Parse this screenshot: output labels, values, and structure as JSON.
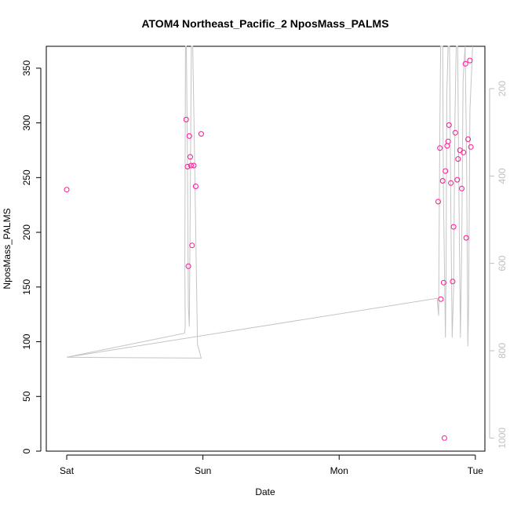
{
  "chart_data": {
    "type": "scatter",
    "title": "ATOM4 Northeast_Pacific_2 NposMass_PALMS",
    "xlabel": "Date",
    "ylabel": "NposMass_PALMS",
    "x_ticks": [
      {
        "label": "Sat",
        "day": 0
      },
      {
        "label": "Sun",
        "day": 1
      },
      {
        "label": "Mon",
        "day": 2
      },
      {
        "label": "Tue",
        "day": 3
      }
    ],
    "xlim_days": [
      -0.15,
      3.07
    ],
    "ylim": [
      0,
      370
    ],
    "y_ticks": [
      0,
      50,
      100,
      150,
      200,
      250,
      300,
      350
    ],
    "right_axis": {
      "ylim": [
        1030,
        103
      ],
      "ticks": [
        200,
        400,
        600,
        800,
        1000
      ],
      "color": "#c0c0c0"
    },
    "series": [
      {
        "style": "points",
        "color": "#ff1493",
        "points": [
          [
            0.0,
            239
          ],
          [
            0.877,
            303
          ],
          [
            0.887,
            260
          ],
          [
            0.893,
            169
          ],
          [
            0.9,
            288
          ],
          [
            0.907,
            269
          ],
          [
            0.913,
            261
          ],
          [
            0.92,
            188
          ],
          [
            0.933,
            261
          ],
          [
            0.947,
            242
          ],
          [
            0.987,
            290
          ],
          [
            2.727,
            228
          ],
          [
            2.74,
            277
          ],
          [
            2.747,
            139
          ],
          [
            2.76,
            247
          ],
          [
            2.767,
            154
          ],
          [
            2.773,
            12
          ],
          [
            2.78,
            256
          ],
          [
            2.793,
            279
          ],
          [
            2.8,
            283
          ],
          [
            2.807,
            298
          ],
          [
            2.82,
            245
          ],
          [
            2.833,
            155
          ],
          [
            2.84,
            205
          ],
          [
            2.853,
            291
          ],
          [
            2.867,
            248
          ],
          [
            2.873,
            267
          ],
          [
            2.887,
            275
          ],
          [
            2.9,
            240
          ],
          [
            2.913,
            273
          ],
          [
            2.927,
            354
          ],
          [
            2.933,
            195
          ],
          [
            2.947,
            285
          ],
          [
            2.96,
            357
          ],
          [
            2.967,
            278
          ]
        ]
      },
      {
        "style": "line",
        "axis": "right",
        "color": "#c4c4c4",
        "points": [
          [
            0.0,
            815
          ],
          [
            0.987,
            817
          ],
          [
            0.96,
            785
          ],
          [
            0.935,
            290
          ],
          [
            0.925,
            103
          ],
          [
            0.915,
            103
          ],
          [
            0.91,
            320
          ],
          [
            0.9,
            745
          ],
          [
            0.893,
            700
          ],
          [
            0.885,
            320
          ],
          [
            0.878,
            103
          ],
          [
            0.872,
            103
          ],
          [
            0.867,
            600
          ],
          [
            0.87,
            745
          ],
          [
            0.865,
            760
          ],
          [
            0.0,
            815
          ],
          [
            2.72,
            680
          ],
          [
            2.73,
            720
          ],
          [
            2.74,
            270
          ],
          [
            2.745,
            103
          ],
          [
            2.76,
            103
          ],
          [
            2.765,
            430
          ],
          [
            2.78,
            770
          ],
          [
            2.785,
            620
          ],
          [
            2.79,
            220
          ],
          [
            2.8,
            103
          ],
          [
            2.81,
            103
          ],
          [
            2.82,
            480
          ],
          [
            2.83,
            770
          ],
          [
            2.84,
            660
          ],
          [
            2.85,
            270
          ],
          [
            2.86,
            103
          ],
          [
            2.87,
            103
          ],
          [
            2.88,
            460
          ],
          [
            2.89,
            770
          ],
          [
            2.9,
            560
          ],
          [
            2.91,
            180
          ],
          [
            2.925,
            103
          ],
          [
            2.935,
            350
          ],
          [
            2.945,
            790
          ],
          [
            2.95,
            700
          ],
          [
            2.96,
            250
          ],
          [
            2.98,
            103
          ]
        ]
      }
    ],
    "grid": false,
    "legend": "none"
  }
}
